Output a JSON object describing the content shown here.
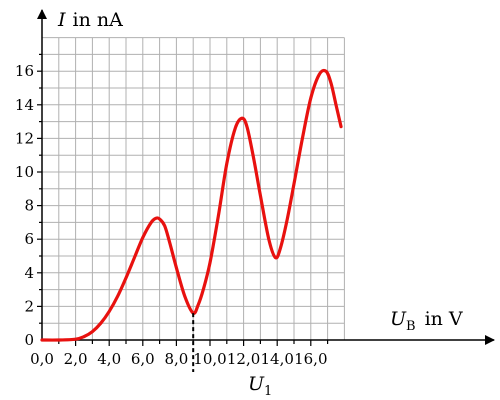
{
  "chart_data": {
    "type": "line",
    "title": "",
    "xlabel_symbol": "U",
    "xlabel_subscript": "B",
    "xlabel_unit": "in V",
    "ylabel_symbol": "I",
    "ylabel_unit": "in nA",
    "xlim": [
      0,
      18
    ],
    "ylim": [
      0,
      18
    ],
    "x_ticks": [
      0,
      2,
      4,
      6,
      8,
      10,
      12,
      14,
      16
    ],
    "x_tick_labels": [
      "0,0",
      "2,0",
      "4,0",
      "6,0",
      "8,0",
      "10,0",
      "12,0",
      "14,0",
      "16,0"
    ],
    "y_ticks": [
      0,
      2,
      4,
      6,
      8,
      10,
      12,
      14,
      16
    ],
    "y_tick_labels": [
      "0",
      "2",
      "4",
      "6",
      "8",
      "10",
      "12",
      "14",
      "16"
    ],
    "grid": true,
    "marker": {
      "x": 9.0,
      "symbol": "U",
      "subscript": "1"
    },
    "series": [
      {
        "color": "#e8110f",
        "x": [
          0.0,
          1.0,
          2.0,
          2.5,
          3.0,
          3.5,
          4.0,
          4.5,
          5.0,
          5.5,
          6.0,
          6.5,
          6.8,
          7.0,
          7.3,
          7.6,
          8.0,
          8.5,
          9.0,
          9.3,
          9.6,
          10.0,
          10.5,
          11.0,
          11.5,
          11.9,
          12.2,
          12.6,
          13.0,
          13.5,
          13.9,
          14.2,
          14.6,
          15.0,
          15.5,
          16.0,
          16.5,
          16.9,
          17.2,
          17.5,
          17.8
        ],
        "y": [
          0.0,
          0.0,
          0.05,
          0.2,
          0.5,
          1.0,
          1.7,
          2.6,
          3.7,
          4.9,
          6.1,
          7.0,
          7.25,
          7.2,
          6.8,
          5.8,
          4.3,
          2.6,
          1.6,
          2.1,
          3.0,
          4.6,
          7.4,
          10.5,
          12.6,
          13.2,
          12.7,
          10.8,
          8.6,
          6.0,
          4.9,
          5.5,
          7.2,
          9.3,
          12.0,
          14.4,
          15.8,
          16.0,
          15.3,
          14.0,
          12.7
        ]
      }
    ]
  }
}
